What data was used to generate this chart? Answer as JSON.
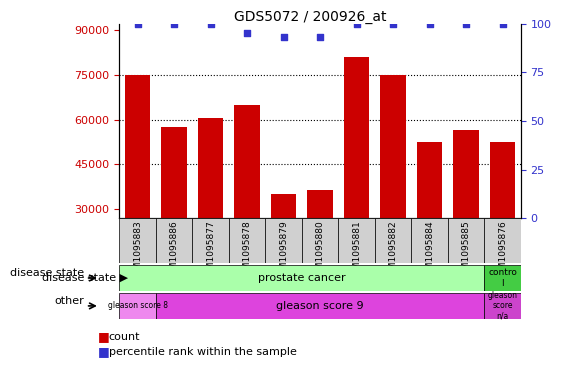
{
  "title": "GDS5072 / 200926_at",
  "samples": [
    "GSM1095883",
    "GSM1095886",
    "GSM1095877",
    "GSM1095878",
    "GSM1095879",
    "GSM1095880",
    "GSM1095881",
    "GSM1095882",
    "GSM1095884",
    "GSM1095885",
    "GSM1095876"
  ],
  "counts": [
    75000,
    57500,
    60500,
    65000,
    35000,
    36500,
    81000,
    75000,
    52500,
    56500,
    52500
  ],
  "percentile_ranks": [
    100,
    100,
    100,
    95,
    93,
    93,
    100,
    100,
    100,
    100,
    100
  ],
  "ylim_left": [
    27000,
    92000
  ],
  "ylim_right": [
    0,
    100
  ],
  "yticks_left": [
    30000,
    45000,
    60000,
    75000,
    90000
  ],
  "yticks_right": [
    0,
    25,
    50,
    75,
    100
  ],
  "bar_color": "#cc0000",
  "dot_color": "#3333cc",
  "disease_state_labels": [
    "prostate cancer",
    "contro\nl"
  ],
  "disease_state_colors": [
    "#aaffaa",
    "#44cc44"
  ],
  "other_labels": [
    "gleason score 8",
    "gleason score 9",
    "gleason\nscore\nn/a"
  ],
  "other_colors": [
    "#dd77dd",
    "#cc44cc",
    "#cc44cc"
  ],
  "tick_label_color_left": "#cc0000",
  "tick_label_color_right": "#3333cc",
  "disease_state_row_label": "disease state",
  "other_row_label": "other",
  "legend_count": "count",
  "legend_percentile": "percentile rank within the sample",
  "xticklabel_bg": "#d0d0d0"
}
